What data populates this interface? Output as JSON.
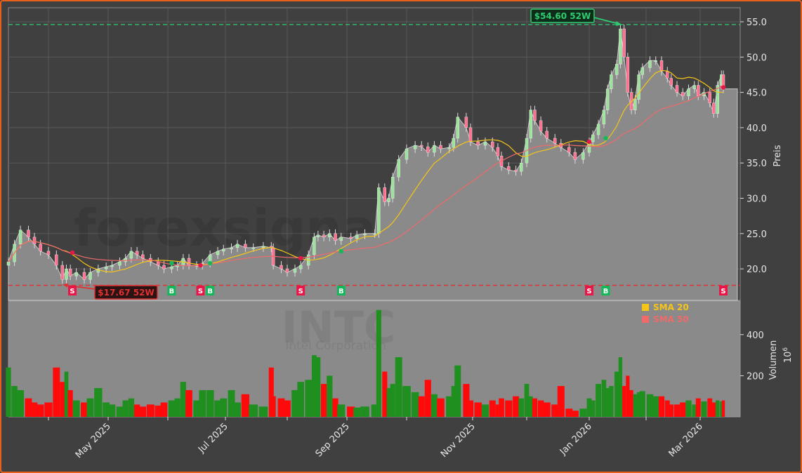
{
  "chart_data": {
    "type": "candlestick",
    "ticker_watermark": "INTC",
    "company_watermark": "Intel Corporation",
    "site_watermark": "forexsignale.trade",
    "price_axis": {
      "label": "Preis",
      "ylim": [
        15.5,
        57
      ],
      "ticks": [
        20,
        25,
        30,
        35,
        40,
        45,
        50,
        55
      ]
    },
    "volume_axis": {
      "label": "Volumen",
      "unit": "10^6",
      "ticks": [
        200,
        400
      ]
    },
    "x_ticks": [
      {
        "date": "2025-05-01",
        "label": "May 2025"
      },
      {
        "date": "2025-07-01",
        "label": "Jul 2025"
      },
      {
        "date": "2025-09-01",
        "label": "Sep 2025"
      },
      {
        "date": "2025-11-01",
        "label": "Nov 2025"
      },
      {
        "date": "2026-01-01",
        "label": "Jan 2026"
      },
      {
        "date": "2026-03-01",
        "label": "Mar 2026"
      }
    ],
    "legend": [
      {
        "name": "SMA 20",
        "color": "#f5c518",
        "window_days": 20
      },
      {
        "name": "SMA 50",
        "color": "#f06a6a",
        "window_days": 50
      }
    ],
    "legend_position": "upper-right of volume panel",
    "high_52w": {
      "value": 54.6,
      "label": "$54.60 52W",
      "date": "2026-01-18",
      "color": "#2ecc71"
    },
    "low_52w": {
      "value": 17.67,
      "label": "$17.67 52W",
      "date": "2025-04-08",
      "color": "#e03030"
    },
    "signals": [
      {
        "type": "S",
        "date": "2025-04-13",
        "price": 22.3
      },
      {
        "type": "B",
        "date": "2025-06-03",
        "price": 20.8
      },
      {
        "type": "S",
        "date": "2025-06-18",
        "price": 20.5
      },
      {
        "type": "B",
        "date": "2025-06-23",
        "price": 20.8
      },
      {
        "type": "S",
        "date": "2025-08-08",
        "price": 21.5
      },
      {
        "type": "B",
        "date": "2025-08-29",
        "price": 22.5
      },
      {
        "type": "S",
        "date": "2026-01-01",
        "price": 38.0
      },
      {
        "type": "B",
        "date": "2026-01-10",
        "price": 38.5
      },
      {
        "type": "S",
        "date": "2026-03-13",
        "price": 45.7
      }
    ],
    "colors": {
      "up": "#9be39b",
      "down": "#ff6f8f",
      "vol_up": "#1f8f1f",
      "vol_down": "#ff0a0a",
      "sell": "#e8174a",
      "buy": "#14b85a",
      "frame": "#e8601c"
    },
    "points_fields": [
      "date",
      "close",
      "volume_millions"
    ],
    "points": [
      [
        "2025-03-12",
        21,
        240
      ],
      [
        "2025-03-15",
        23.5,
        150
      ],
      [
        "2025-03-18",
        25.5,
        130
      ],
      [
        "2025-03-22",
        24.5,
        90
      ],
      [
        "2025-03-25",
        23.5,
        70
      ],
      [
        "2025-03-28",
        22.5,
        60
      ],
      [
        "2025-04-01",
        22,
        70
      ],
      [
        "2025-04-05",
        20.5,
        240
      ],
      [
        "2025-04-08",
        18.5,
        170
      ],
      [
        "2025-04-10",
        20,
        220
      ],
      [
        "2025-04-12",
        19,
        130
      ],
      [
        "2025-04-15",
        19.5,
        80
      ],
      [
        "2025-04-19",
        18.5,
        70
      ],
      [
        "2025-04-22",
        19.5,
        90
      ],
      [
        "2025-04-26",
        20,
        140
      ],
      [
        "2025-04-30",
        20.3,
        70
      ],
      [
        "2025-05-03",
        20.5,
        60
      ],
      [
        "2025-05-07",
        21,
        50
      ],
      [
        "2025-05-10",
        21.5,
        80
      ],
      [
        "2025-05-13",
        22.5,
        90
      ],
      [
        "2025-05-16",
        22,
        60
      ],
      [
        "2025-05-19",
        21.5,
        50
      ],
      [
        "2025-05-23",
        21,
        60
      ],
      [
        "2025-05-27",
        20.5,
        55
      ],
      [
        "2025-05-30",
        20,
        70
      ],
      [
        "2025-06-03",
        20.3,
        80
      ],
      [
        "2025-06-06",
        20.5,
        90
      ],
      [
        "2025-06-09",
        21.5,
        170
      ],
      [
        "2025-06-12",
        20.5,
        130
      ],
      [
        "2025-06-16",
        20.5,
        80
      ],
      [
        "2025-06-19",
        20.8,
        130
      ],
      [
        "2025-06-23",
        22,
        130
      ],
      [
        "2025-06-27",
        22.5,
        80
      ],
      [
        "2025-06-30",
        22.8,
        90
      ],
      [
        "2025-07-04",
        23,
        130
      ],
      [
        "2025-07-07",
        23.5,
        70
      ],
      [
        "2025-07-11",
        23,
        110
      ],
      [
        "2025-07-15",
        23,
        60
      ],
      [
        "2025-07-20",
        23.2,
        50
      ],
      [
        "2025-07-24",
        23,
        240
      ],
      [
        "2025-07-25",
        20.5,
        100
      ],
      [
        "2025-07-29",
        20,
        90
      ],
      [
        "2025-08-01",
        19.5,
        80
      ],
      [
        "2025-08-05",
        20,
        130
      ],
      [
        "2025-08-08",
        20.5,
        170
      ],
      [
        "2025-08-12",
        22,
        180
      ],
      [
        "2025-08-15",
        24.5,
        300
      ],
      [
        "2025-08-17",
        24.8,
        290
      ],
      [
        "2025-08-20",
        24.5,
        160
      ],
      [
        "2025-08-23",
        25,
        200
      ],
      [
        "2025-08-26",
        24,
        90
      ],
      [
        "2025-08-29",
        24.5,
        60
      ],
      [
        "2025-09-03",
        24.3,
        50
      ],
      [
        "2025-09-06",
        24.8,
        45
      ],
      [
        "2025-09-10",
        25,
        50
      ],
      [
        "2025-09-15",
        25,
        60
      ],
      [
        "2025-09-17",
        31.5,
        520
      ],
      [
        "2025-09-20",
        29.5,
        220
      ],
      [
        "2025-09-22",
        30,
        140
      ],
      [
        "2025-09-24",
        33,
        160
      ],
      [
        "2025-09-27",
        35.5,
        290
      ],
      [
        "2025-10-01",
        37,
        150
      ],
      [
        "2025-10-05",
        37.5,
        120
      ],
      [
        "2025-10-08",
        37.3,
        100
      ],
      [
        "2025-10-11",
        36.5,
        180
      ],
      [
        "2025-10-14",
        37.5,
        110
      ],
      [
        "2025-10-17",
        37,
        90
      ],
      [
        "2025-10-21",
        37.2,
        100
      ],
      [
        "2025-10-23",
        38.5,
        150
      ],
      [
        "2025-10-25",
        41.5,
        250
      ],
      [
        "2025-10-29",
        40,
        160
      ],
      [
        "2025-10-31",
        38,
        80
      ],
      [
        "2025-11-04",
        37.5,
        70
      ],
      [
        "2025-11-08",
        38,
        60
      ],
      [
        "2025-11-12",
        37.2,
        80
      ],
      [
        "2025-11-15",
        36,
        60
      ],
      [
        "2025-11-17",
        34.5,
        90
      ],
      [
        "2025-11-21",
        34,
        80
      ],
      [
        "2025-11-25",
        33.8,
        100
      ],
      [
        "2025-11-28",
        35,
        90
      ],
      [
        "2025-12-01",
        38.5,
        160
      ],
      [
        "2025-12-03",
        42.5,
        100
      ],
      [
        "2025-12-05",
        41,
        90
      ],
      [
        "2025-12-08",
        39.5,
        80
      ],
      [
        "2025-12-11",
        38.5,
        70
      ],
      [
        "2025-12-15",
        37.8,
        60
      ],
      [
        "2025-12-18",
        37.2,
        150
      ],
      [
        "2025-12-22",
        36.5,
        40
      ],
      [
        "2025-12-25",
        35.5,
        30
      ],
      [
        "2025-12-29",
        36.5,
        40
      ],
      [
        "2026-01-01",
        38,
        90
      ],
      [
        "2026-01-03",
        39,
        80
      ],
      [
        "2026-01-06",
        40.5,
        160
      ],
      [
        "2026-01-09",
        42.5,
        180
      ],
      [
        "2026-01-11",
        45.5,
        140
      ],
      [
        "2026-01-13",
        47.5,
        150
      ],
      [
        "2026-01-16",
        49,
        220
      ],
      [
        "2026-01-18",
        54,
        290
      ],
      [
        "2026-01-20",
        50,
        150
      ],
      [
        "2026-01-22",
        45,
        200
      ],
      [
        "2026-01-24",
        42.5,
        130
      ],
      [
        "2026-01-26",
        44,
        110
      ],
      [
        "2026-01-28",
        47.5,
        120
      ],
      [
        "2026-01-30",
        48.5,
        125
      ],
      [
        "2026-02-03",
        49.5,
        110
      ],
      [
        "2026-02-06",
        49.5,
        100
      ],
      [
        "2026-02-09",
        48,
        100
      ],
      [
        "2026-02-12",
        47,
        80
      ],
      [
        "2026-02-14",
        46,
        60
      ],
      [
        "2026-02-17",
        45,
        60
      ],
      [
        "2026-02-20",
        44.5,
        70
      ],
      [
        "2026-02-23",
        45.5,
        80
      ],
      [
        "2026-02-26",
        46,
        60
      ],
      [
        "2026-02-28",
        44.5,
        90
      ],
      [
        "2026-03-03",
        45,
        75
      ],
      [
        "2026-03-06",
        43.5,
        90
      ],
      [
        "2026-03-08",
        42,
        70
      ],
      [
        "2026-03-10",
        46,
        80
      ],
      [
        "2026-03-12",
        47.5,
        75
      ],
      [
        "2026-03-13",
        45.5,
        80
      ]
    ]
  }
}
